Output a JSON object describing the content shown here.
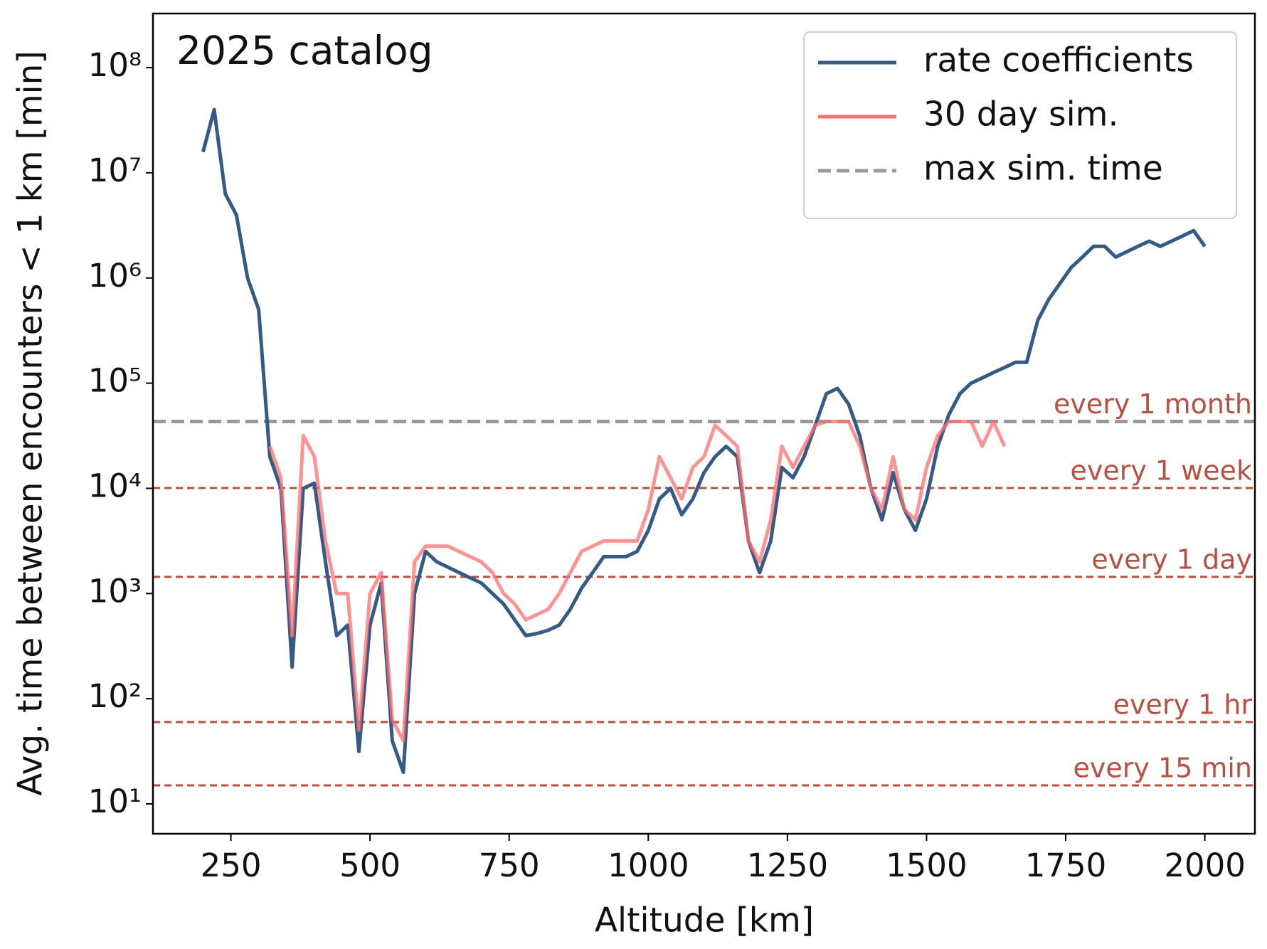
{
  "chart_data": {
    "type": "line",
    "title": "2025 catalog",
    "xlabel": "Altitude [km]",
    "ylabel": "Avg. time between encounters < 1 km [min]",
    "x": [
      200,
      220,
      240,
      260,
      280,
      300,
      320,
      340,
      360,
      380,
      400,
      420,
      440,
      460,
      480,
      500,
      520,
      540,
      560,
      580,
      600,
      620,
      640,
      660,
      680,
      700,
      720,
      740,
      760,
      780,
      800,
      820,
      840,
      860,
      880,
      900,
      920,
      940,
      960,
      980,
      1000,
      1020,
      1040,
      1060,
      1080,
      1100,
      1120,
      1140,
      1160,
      1180,
      1200,
      1220,
      1240,
      1260,
      1280,
      1300,
      1320,
      1340,
      1360,
      1380,
      1400,
      1420,
      1440,
      1460,
      1480,
      1500,
      1520,
      1540,
      1560,
      1580,
      1600,
      1620,
      1640,
      1660,
      1680,
      1700,
      1720,
      1740,
      1760,
      1780,
      1800,
      1820,
      1840,
      1860,
      1880,
      1900,
      1920,
      1940,
      1960,
      1980,
      2000
    ],
    "series": [
      {
        "name": "rate coefficients",
        "color": "#345a85",
        "values": [
          15800000,
          39800000,
          6310000,
          3980000,
          1000000,
          501000,
          20000,
          10000,
          200,
          10000,
          11200,
          2000,
          398,
          501,
          31.6,
          501,
          1260,
          39.8,
          20,
          1000,
          2510,
          2000,
          1780,
          1580,
          1410,
          1260,
          1000,
          794,
          562,
          398,
          417,
          447,
          501,
          708,
          1120,
          1580,
          2240,
          2240,
          2240,
          2510,
          3980,
          7940,
          10000,
          5620,
          7940,
          14100,
          20000,
          25100,
          20000,
          3160,
          1580,
          3160,
          15800,
          12600,
          20000,
          39800,
          79400,
          89100,
          63100,
          31600,
          10000,
          5010,
          14100,
          6310,
          3980,
          7940,
          25100,
          50100,
          79400,
          100000,
          112000,
          126000,
          141000,
          158000,
          158000,
          398000,
          631000,
          891000,
          1260000,
          1580000,
          2000000,
          2000000,
          1580000,
          1780000,
          2000000,
          2240000,
          2000000,
          2240000,
          2510000,
          2820000,
          2000000
        ]
      },
      {
        "name": "30 day sim.",
        "color": "#ff6f6f",
        "values": [
          null,
          null,
          null,
          null,
          null,
          null,
          25100,
          12600,
          398,
          31600,
          20000,
          3160,
          1000,
          1000,
          50.1,
          1000,
          1580,
          63.1,
          39.8,
          2000,
          2820,
          2820,
          2820,
          2510,
          2240,
          2000,
          1580,
          1000,
          794,
          562,
          631,
          708,
          1000,
          1580,
          2510,
          2820,
          3160,
          3160,
          3160,
          3160,
          6310,
          20000,
          12600,
          7940,
          15800,
          20000,
          39800,
          31600,
          25100,
          3160,
          2000,
          5010,
          25100,
          15800,
          25100,
          39800,
          43200,
          43200,
          43200,
          25100,
          10000,
          6310,
          20000,
          6310,
          5010,
          15800,
          31600,
          43200,
          43200,
          43200,
          25100,
          43200,
          25100,
          null,
          null,
          null,
          null,
          null,
          null,
          null,
          null,
          null,
          null,
          null,
          null,
          null,
          null,
          null,
          null,
          null,
          null
        ]
      }
    ],
    "hlines": [
      {
        "value": 43200,
        "label": "every 1 month",
        "name": "max sim. time",
        "color": "#999999"
      },
      {
        "value": 10080,
        "label": "every 1 week",
        "color": "#b85042"
      },
      {
        "value": 1440,
        "label": "every 1 day",
        "color": "#b85042"
      },
      {
        "value": 60,
        "label": "every 1 hr",
        "color": "#b85042"
      },
      {
        "value": 15,
        "label": "every 15 min",
        "color": "#b85042"
      }
    ],
    "xlim": [
      110,
      2090
    ],
    "xticks": [
      250,
      500,
      750,
      1000,
      1250,
      1500,
      1750,
      2000
    ],
    "ylim": [
      5.2,
      327000000
    ],
    "ylog": true,
    "yticks": [
      {
        "value": 10,
        "label": "10¹"
      },
      {
        "value": 100,
        "label": "10²"
      },
      {
        "value": 1000,
        "label": "10³"
      },
      {
        "value": 10000,
        "label": "10⁴"
      },
      {
        "value": 100000,
        "label": "10⁵"
      },
      {
        "value": 1000000,
        "label": "10⁶"
      },
      {
        "value": 10000000,
        "label": "10⁷"
      },
      {
        "value": 100000000,
        "label": "10⁸"
      }
    ],
    "legend": "upper right"
  }
}
